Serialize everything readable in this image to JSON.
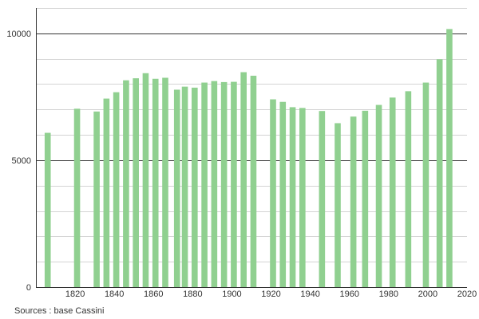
{
  "chart_data": {
    "type": "bar",
    "x": [
      1806,
      1821,
      1831,
      1836,
      1841,
      1846,
      1851,
      1856,
      1861,
      1866,
      1872,
      1876,
      1881,
      1886,
      1891,
      1896,
      1901,
      1906,
      1911,
      1921,
      1926,
      1931,
      1936,
      1946,
      1954,
      1962,
      1968,
      1975,
      1982,
      1990,
      1999,
      2006,
      2011
    ],
    "values": [
      6080,
      7030,
      6920,
      7430,
      7680,
      8150,
      8230,
      8430,
      8210,
      8250,
      7780,
      7900,
      7860,
      8060,
      8120,
      8080,
      8090,
      8470,
      8330,
      7400,
      7300,
      7090,
      7060,
      6940,
      6460,
      6720,
      6950,
      7180,
      7470,
      7720,
      8060,
      8980,
      10170
    ],
    "xlim": [
      1800,
      2020
    ],
    "ylim": [
      0,
      11000
    ],
    "x_ticks": [
      1820,
      1840,
      1860,
      1880,
      1900,
      1920,
      1940,
      1960,
      1980,
      2000,
      2020
    ],
    "y_ticks": [
      0,
      5000,
      10000
    ],
    "y_minor_ticks": [
      1000,
      2000,
      3000,
      4000,
      6000,
      7000,
      8000,
      9000,
      11000
    ],
    "grid": true,
    "bar_color": "#90d090",
    "source": "Sources : base Cassini"
  }
}
